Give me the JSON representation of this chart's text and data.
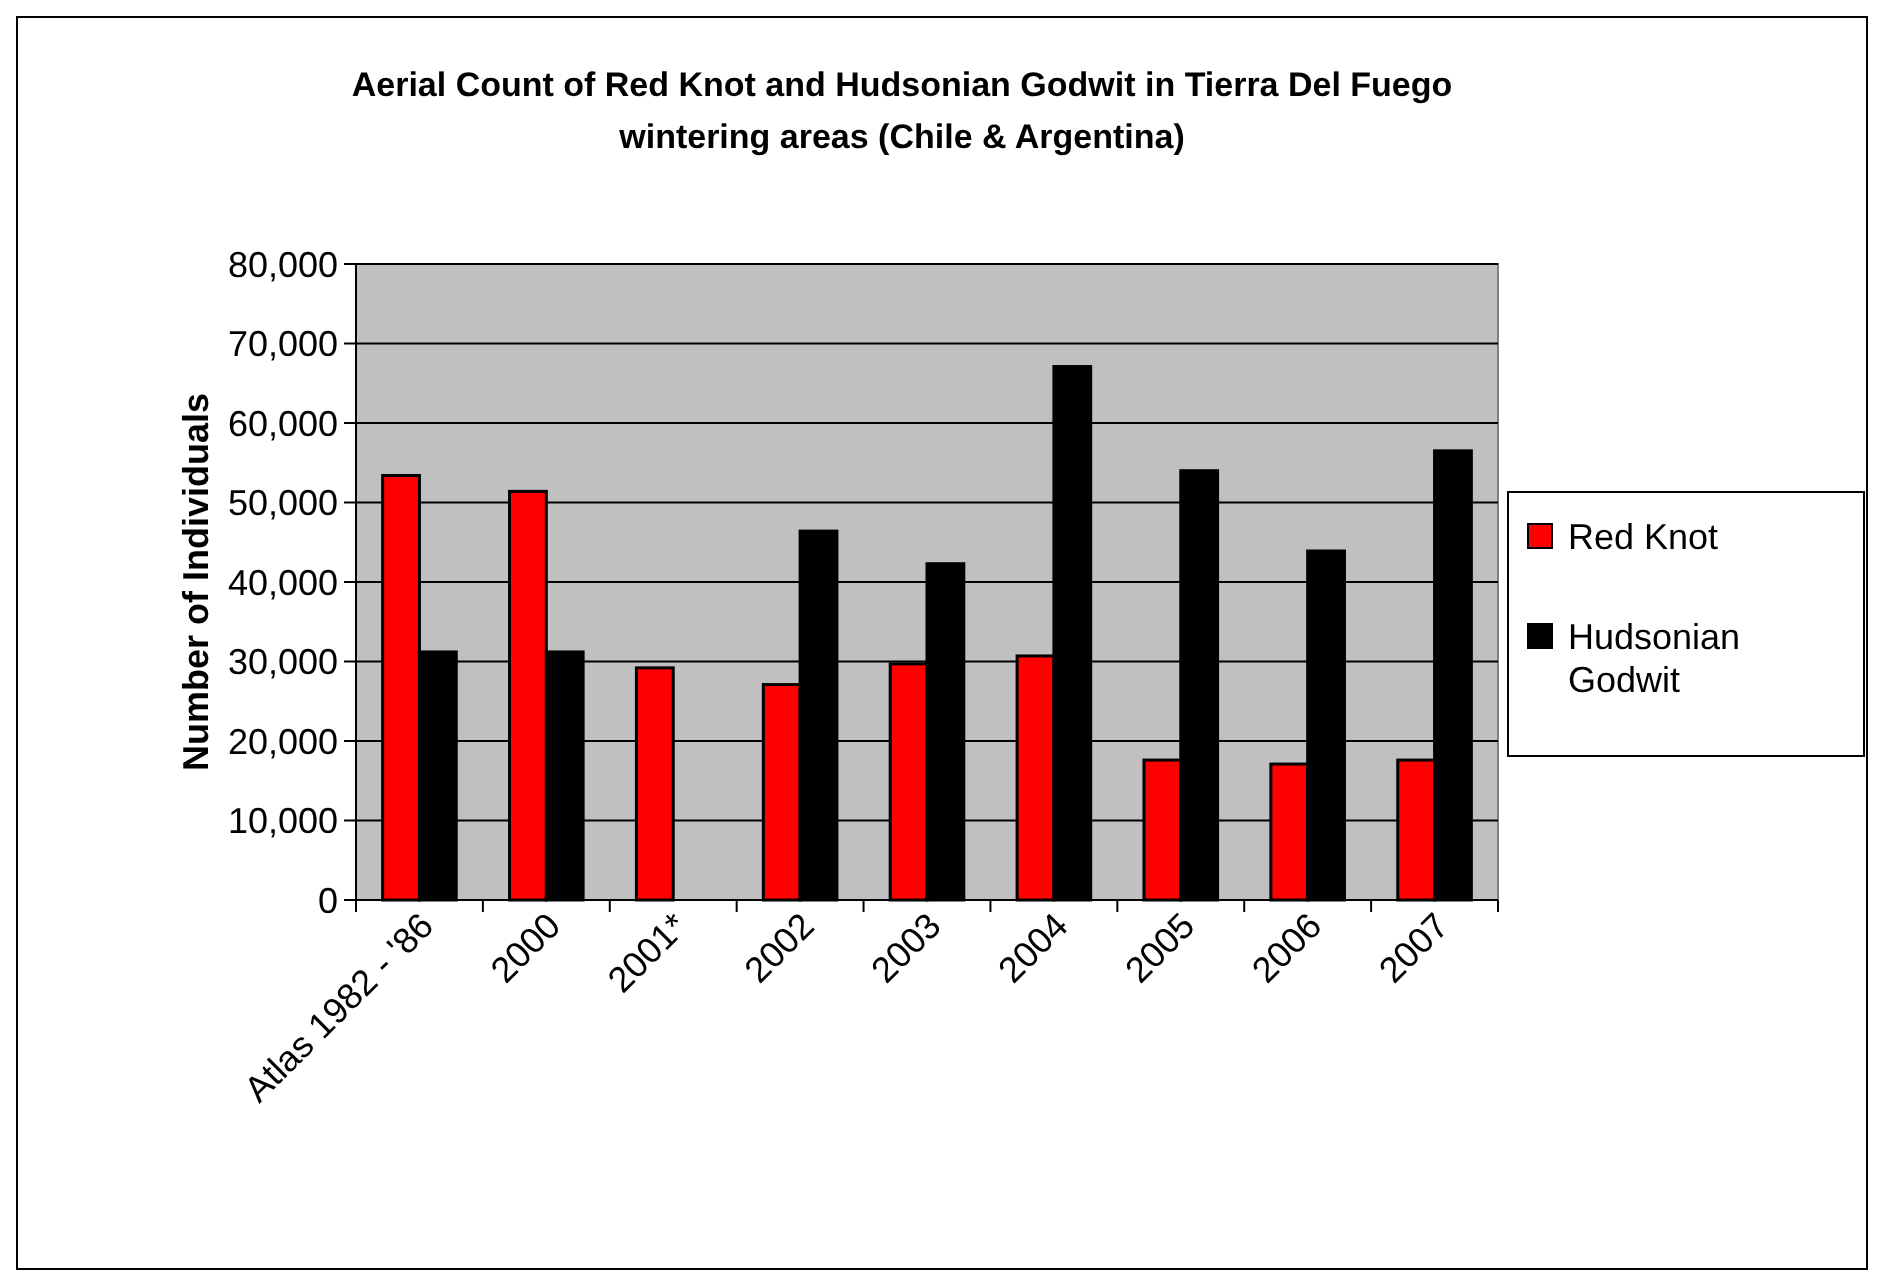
{
  "chart_data": {
    "type": "bar",
    "title": "Aerial Count of Red Knot and Hudsonian Godwit in Tierra Del Fuego wintering areas (Chile & Argentina)",
    "ylabel": "Number of Individuals",
    "categories": [
      "Atlas 1982 - '86",
      "2000",
      "2001*",
      "2002",
      "2003",
      "2004",
      "2005",
      "2006",
      "2007"
    ],
    "series": [
      {
        "name": "Red Knot",
        "color": "#ff0000",
        "values": [
          53400,
          51400,
          29200,
          27100,
          29700,
          30700,
          17600,
          17100,
          17600
        ]
      },
      {
        "name": "Hudsonian Godwit",
        "color": "#000000",
        "values": [
          31200,
          31200,
          null,
          46400,
          42300,
          67100,
          54000,
          43900,
          56500
        ]
      }
    ],
    "ylim": [
      0,
      80000
    ],
    "yticks": [
      {
        "value": 0,
        "label": "0"
      },
      {
        "value": 10000,
        "label": "10,000"
      },
      {
        "value": 20000,
        "label": "20,000"
      },
      {
        "value": 30000,
        "label": "30,000"
      },
      {
        "value": 40000,
        "label": "40,000"
      },
      {
        "value": 50000,
        "label": "50,000"
      },
      {
        "value": 60000,
        "label": "60,000"
      },
      {
        "value": 70000,
        "label": "70,000"
      },
      {
        "value": 80000,
        "label": "80,000"
      }
    ],
    "grid": "y",
    "legend": "right"
  }
}
